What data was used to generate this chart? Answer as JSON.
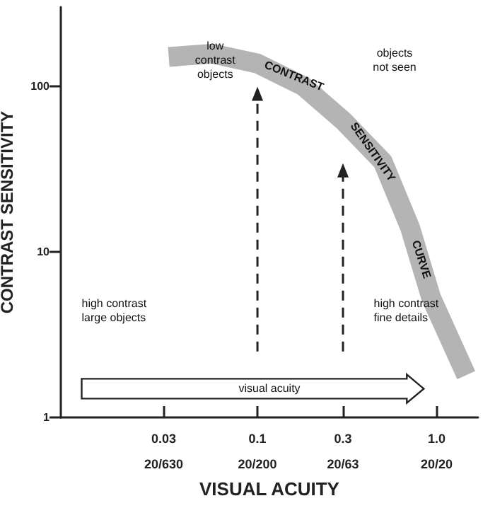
{
  "chart_data": {
    "type": "line",
    "xlabel": "VISUAL ACUITY",
    "ylabel": "CONTRAST SENSITIVITY",
    "log": "xy",
    "xlim": [
      0.008,
      1.7
    ],
    "ylim": [
      1,
      300
    ],
    "xticks": [
      0.03,
      0.1,
      0.3,
      {
        "value": 1,
        "label": "1.0"
      }
    ],
    "yticks": [
      1,
      10,
      100
    ],
    "grid": false,
    "marker": "none",
    "series": [
      {
        "color": "#b4b4b4",
        "x": [
          0.032,
          0.056,
          0.1,
          0.18,
          0.3,
          0.5,
          0.71,
          0.93,
          1.46
        ],
        "values": [
          150,
          157,
          137,
          100,
          62,
          35,
          14,
          5.3,
          1.8
        ]
      },
      {
        "color": "#222222",
        "line_style": "dashed",
        "marker": "triangle",
        "x": [
          0.1,
          0.1
        ],
        "values": [
          2.5,
          90
        ]
      },
      {
        "color": "#222222",
        "line_style": "dashed",
        "marker": "triangle",
        "x": [
          0.3,
          0.3
        ],
        "values": [
          2.5,
          31
        ]
      }
    ],
    "annotations": [
      {
        "text": "CONTRAST",
        "x": 0.16,
        "y": 115
      },
      {
        "text": "SENSITIVITY",
        "x": 0.44,
        "y": 40
      },
      {
        "text": "CURVE",
        "x": 0.82,
        "y": 9
      },
      "low\ncontrast\nobjects",
      "objects\nnot seen",
      "high contrast\nlarge objects",
      "high contrast\nfine details",
      "visual acuity",
      "20/630",
      "20/200",
      "20/63",
      "20/20"
    ]
  }
}
